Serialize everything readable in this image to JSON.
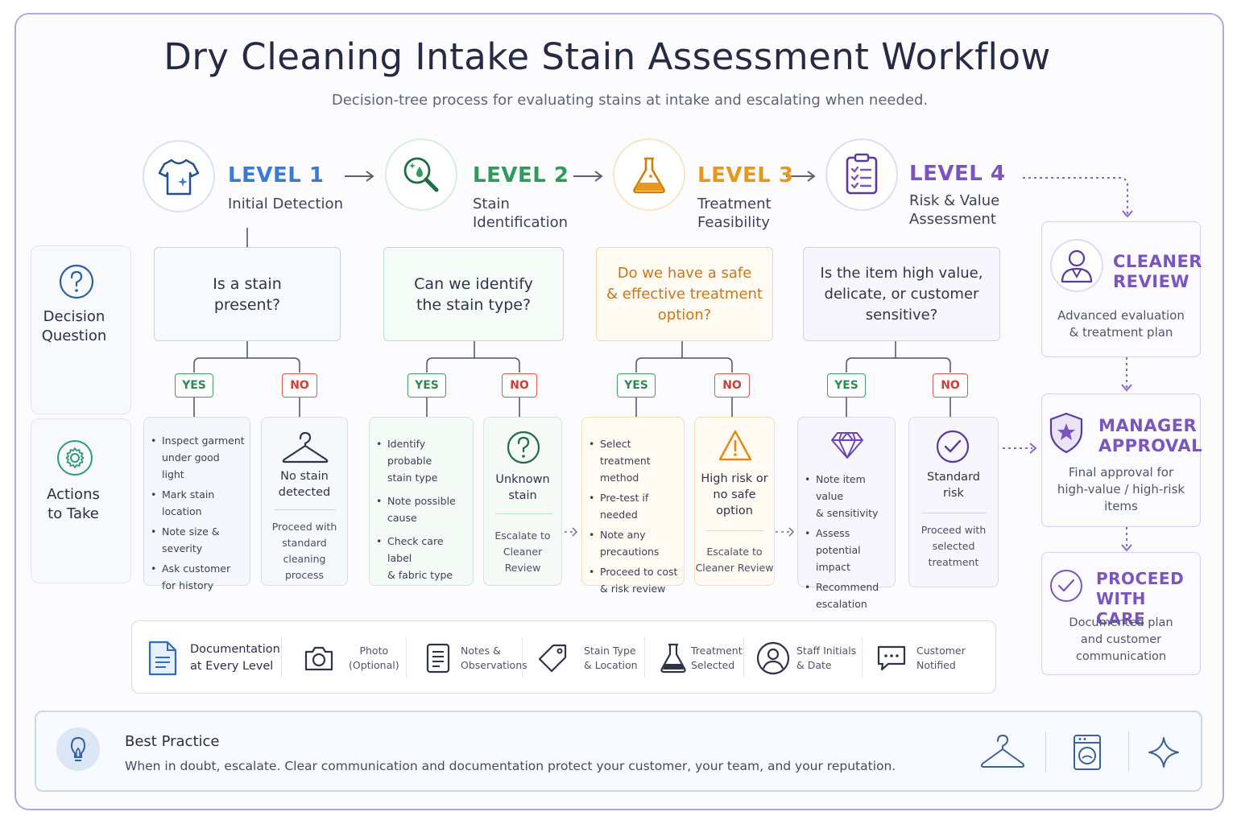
{
  "title": "Dry Cleaning Intake Stain Assessment Workflow",
  "subtitle": "Decision-tree process for evaluating stains at intake and escalating when needed.",
  "colors": {
    "level1": "#3a7bd5",
    "level2": "#2e9a5b",
    "level3": "#e8961c",
    "level4": "#7a54bf"
  },
  "levels": [
    {
      "label": "LEVEL 1",
      "name": "Initial Detection",
      "icon": "tshirt-icon"
    },
    {
      "label": "LEVEL 2",
      "name_line1": "Stain",
      "name_line2": "Identification",
      "icon": "magnifier-icon"
    },
    {
      "label": "LEVEL 3",
      "name_line1": "Treatment",
      "name_line2": "Feasibility",
      "icon": "flask-icon"
    },
    {
      "label": "LEVEL 4",
      "name_line1": "Risk & Value",
      "name_line2": "Assessment",
      "icon": "clipboard-icon"
    }
  ],
  "side": {
    "decision_line1": "Decision",
    "decision_line2": "Question",
    "actions_line1": "Actions",
    "actions_line2": "to Take"
  },
  "questions": [
    {
      "line1": "Is a stain",
      "line2": "present?"
    },
    {
      "line1": "Can we identify",
      "line2": "the stain type?"
    },
    {
      "line1": "Do we have a safe",
      "line2": "& effective treatment",
      "line3": "option?"
    },
    {
      "line1": "Is the item high value,",
      "line2": "delicate, or customer",
      "line3": "sensitive?"
    }
  ],
  "badges": {
    "yes": "YES",
    "no": "NO"
  },
  "yes_actions": [
    [
      "Inspect garment under good light",
      "Mark stain location",
      "Note size & severity",
      "Ask customer for history"
    ],
    [
      "Identify probable stain type",
      "Note possible cause",
      "Check care label & fabric type"
    ],
    [
      "Select treatment method",
      "Pre-test if needed",
      "Note any precautions",
      "Proceed to cost & risk review"
    ],
    [
      "Note item value & sensitivity",
      "Assess potential impact",
      "Recommend escalation"
    ]
  ],
  "yes_lines": [
    [
      [
        "Inspect garment",
        "under good light"
      ],
      [
        "Mark stain location"
      ],
      [
        "Note size & severity"
      ],
      [
        "Ask customer",
        "for history"
      ]
    ],
    [
      [
        "Identify probable",
        "stain type"
      ],
      [
        "Note possible",
        "cause"
      ],
      [
        "Check care label",
        "& fabric type"
      ]
    ],
    [
      [
        "Select treatment",
        "method"
      ],
      [
        "Pre-test if needed"
      ],
      [
        "Note any",
        "precautions"
      ],
      [
        "Proceed to cost",
        "& risk review"
      ]
    ],
    [
      [
        "Note item value",
        "& sensitivity"
      ],
      [
        "Assess potential",
        "impact"
      ],
      [
        "Recommend",
        "escalation"
      ]
    ]
  ],
  "no_outcomes": [
    {
      "icon": "hanger-icon",
      "title_line1": "No stain",
      "title_line2": "detected",
      "note_line1": "Proceed with",
      "note_line2": "standard cleaning",
      "note_line3": "process"
    },
    {
      "icon": "question-icon",
      "title_line1": "Unknown",
      "title_line2": "stain",
      "note_line1": "Escalate to",
      "note_line2": "Cleaner Review"
    },
    {
      "icon": "warning-icon",
      "title_line1": "High risk or",
      "title_line2": "no safe",
      "title_line3": "option",
      "note_line1": "Escalate to",
      "note_line2": "Cleaner Review"
    },
    {
      "icon": "check-circle-icon",
      "title_line1": "Standard",
      "title_line2": "risk",
      "note_line1": "Proceed with",
      "note_line2": "selected",
      "note_line3": "treatment"
    }
  ],
  "escalation": [
    {
      "title_line1": "CLEANER",
      "title_line2": "REVIEW",
      "desc_line1": "Advanced evaluation",
      "desc_line2": "& treatment plan",
      "icon": "person-icon"
    },
    {
      "title_line1": "MANAGER",
      "title_line2": "APPROVAL",
      "desc_line1": "Final approval for",
      "desc_line2": "high-value / high-risk",
      "desc_line3": "items",
      "icon": "shield-star-icon"
    },
    {
      "title_line1": "PROCEED",
      "title_line2": "WITH CARE",
      "desc_line1": "Documented plan",
      "desc_line2": "and customer",
      "desc_line3": "communication",
      "icon": "check-circle-icon"
    }
  ],
  "documentation": {
    "title_line1": "Documentation",
    "title_line2": "at Every Level",
    "items": [
      {
        "icon": "camera-icon",
        "line1": "Photo",
        "line2": "(Optional)"
      },
      {
        "icon": "notes-icon",
        "line1": "Notes &",
        "line2": "Observations"
      },
      {
        "icon": "tag-icon",
        "line1": "Stain Type",
        "line2": "& Location"
      },
      {
        "icon": "flask-icon",
        "line1": "Treatment",
        "line2": "Selected"
      },
      {
        "icon": "user-icon",
        "line1": "Staff Initials",
        "line2": "& Date"
      },
      {
        "icon": "chat-icon",
        "line1": "Customer",
        "line2": "Notified"
      }
    ]
  },
  "best_practice": {
    "title": "Best Practice",
    "text": "When in doubt, escalate. Clear communication and documentation protect your customer, your team, and your reputation.",
    "icons": [
      "lightbulb-icon",
      "hanger-icon",
      "washing-machine-icon",
      "sparkle-icon"
    ]
  }
}
